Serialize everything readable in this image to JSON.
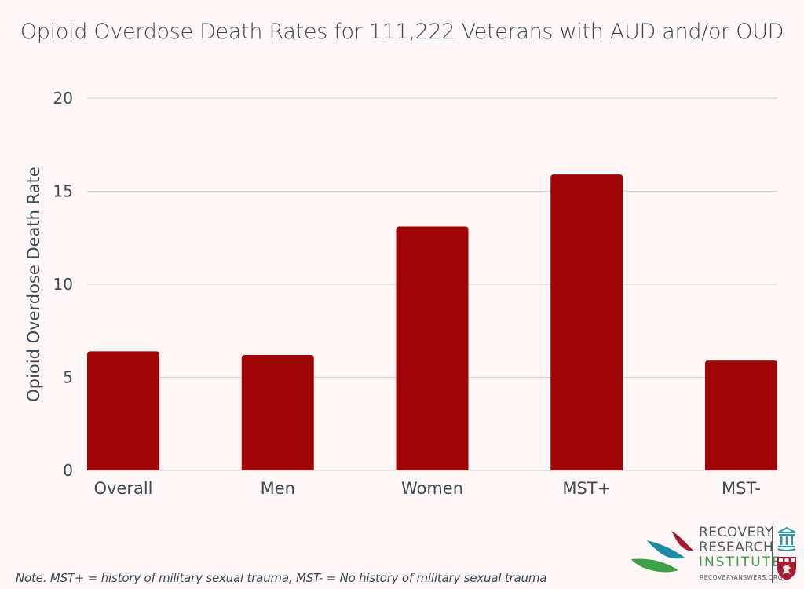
{
  "chart_data": {
    "type": "bar",
    "title": "Opioid Overdose Death Rates for 111,222 Veterans with AUD and/or OUD",
    "xlabel": "",
    "ylabel": "Opioid Overdose Death Rate",
    "categories": [
      "Overall",
      "Men",
      "Women",
      "MST+",
      "MST-"
    ],
    "values": [
      6.4,
      6.2,
      13.1,
      15.9,
      5.9
    ],
    "ylim": [
      0,
      20
    ],
    "yticks": [
      0,
      5,
      10,
      15,
      20
    ],
    "grid": true,
    "legend": "none",
    "bar_color": "#a00404"
  },
  "footnote": "Note.  MST+ = history of military sexual trauma, MST- = No history of military sexual trauma",
  "logo": {
    "line1": "RECOVERY",
    "line2": "RESEARCH",
    "line3": "INSTITUTE",
    "url": "RECOVERYANSWERS.ORG",
    "colors": {
      "red": "#a31c2e",
      "blue": "#1d8aa8",
      "green": "#3fa04a",
      "shield": "#a51c30",
      "teal": "#2a9aa6"
    }
  }
}
